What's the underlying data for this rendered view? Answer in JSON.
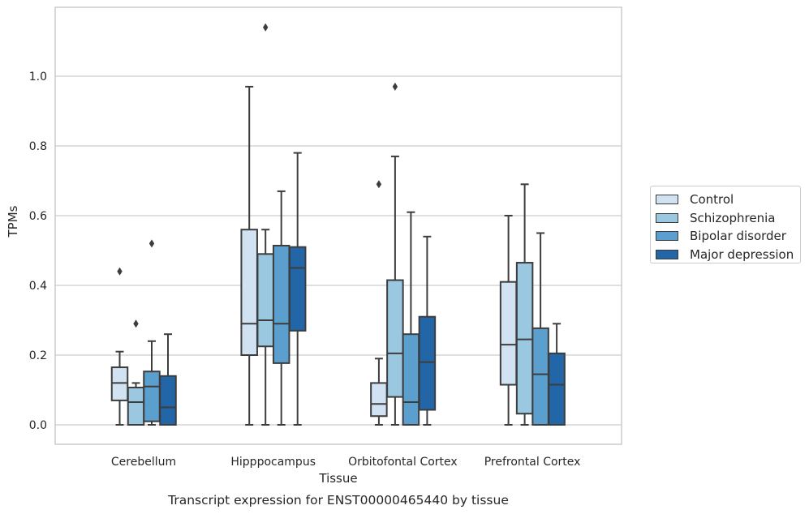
{
  "chart_data": {
    "type": "boxplot",
    "title": "Transcript expression for ENST00000465440 by tissue",
    "xlabel": "Tissue",
    "ylabel": "TPMs",
    "ylim": [
      -0.055,
      1.205
    ],
    "yticks": [
      "0.0",
      "0.2",
      "0.4",
      "0.6",
      "0.8",
      "1.0"
    ],
    "grid": true,
    "legend_position": "right",
    "categories": [
      "Cerebellum",
      "Hipppocampus",
      "Orbitofontal Cortex",
      "Prefrontal Cortex"
    ],
    "series": [
      {
        "name": "Control",
        "color": "#d1e2f2",
        "boxes": [
          {
            "whislo": 0.0,
            "q1": 0.07,
            "med": 0.12,
            "q3": 0.165,
            "whishi": 0.21,
            "fliers": [
              0.44
            ]
          },
          {
            "whislo": 0.0,
            "q1": 0.2,
            "med": 0.29,
            "q3": 0.56,
            "whishi": 0.97,
            "fliers": []
          },
          {
            "whislo": 0.0,
            "q1": 0.025,
            "med": 0.06,
            "q3": 0.12,
            "whishi": 0.19,
            "fliers": [
              0.69
            ]
          },
          {
            "whislo": 0.0,
            "q1": 0.115,
            "med": 0.23,
            "q3": 0.41,
            "whishi": 0.6,
            "fliers": []
          }
        ]
      },
      {
        "name": "Schizophrenia",
        "color": "#9ac8e0",
        "boxes": [
          {
            "whislo": 0.0,
            "q1": 0.0,
            "med": 0.065,
            "q3": 0.107,
            "whishi": 0.12,
            "fliers": [
              0.29
            ]
          },
          {
            "whislo": 0.0,
            "q1": 0.225,
            "med": 0.3,
            "q3": 0.49,
            "whishi": 0.56,
            "fliers": [
              1.14
            ]
          },
          {
            "whislo": 0.0,
            "q1": 0.08,
            "med": 0.205,
            "q3": 0.415,
            "whishi": 0.77,
            "fliers": [
              0.97
            ]
          },
          {
            "whislo": 0.0,
            "q1": 0.032,
            "med": 0.245,
            "q3": 0.465,
            "whishi": 0.69,
            "fliers": []
          }
        ]
      },
      {
        "name": "Bipolar disorder",
        "color": "#5a9fcd",
        "boxes": [
          {
            "whislo": 0.0,
            "q1": 0.01,
            "med": 0.11,
            "q3": 0.153,
            "whishi": 0.24,
            "fliers": [
              0.52
            ]
          },
          {
            "whislo": 0.0,
            "q1": 0.177,
            "med": 0.29,
            "q3": 0.514,
            "whishi": 0.67,
            "fliers": []
          },
          {
            "whislo": 0.0,
            "q1": 0.0,
            "med": 0.065,
            "q3": 0.26,
            "whishi": 0.61,
            "fliers": []
          },
          {
            "whislo": 0.0,
            "q1": 0.0,
            "med": 0.145,
            "q3": 0.277,
            "whishi": 0.55,
            "fliers": []
          }
        ]
      },
      {
        "name": "Major depression",
        "color": "#2266a8",
        "boxes": [
          {
            "whislo": 0.0,
            "q1": 0.0,
            "med": 0.05,
            "q3": 0.14,
            "whishi": 0.26,
            "fliers": []
          },
          {
            "whislo": 0.0,
            "q1": 0.27,
            "med": 0.45,
            "q3": 0.51,
            "whishi": 0.78,
            "fliers": []
          },
          {
            "whislo": 0.0,
            "q1": 0.043,
            "med": 0.18,
            "q3": 0.31,
            "whishi": 0.54,
            "fliers": []
          },
          {
            "whislo": 0.0,
            "q1": 0.0,
            "med": 0.115,
            "q3": 0.205,
            "whishi": 0.29,
            "fliers": []
          }
        ]
      }
    ]
  }
}
